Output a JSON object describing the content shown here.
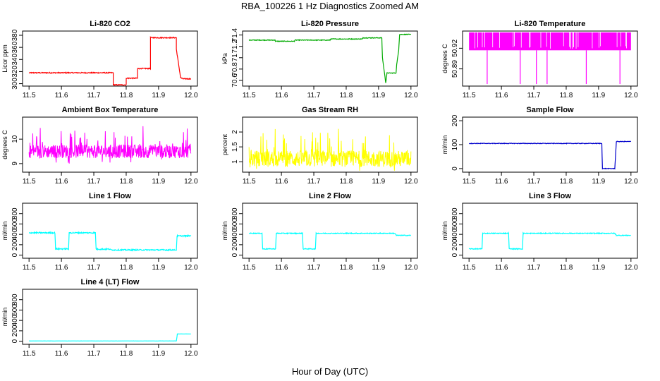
{
  "figure": {
    "title": "RBA_100226  1 Hz Diagnostics Zoomed AM",
    "xlabel": "Hour of Day (UTC)"
  },
  "chart_data": [
    {
      "type": "line",
      "title": "Li-820 CO2",
      "ylabel": "Licor ppm",
      "color": "#ff0000",
      "xlim": [
        11.5,
        12.0
      ],
      "ylim": [
        296,
        387
      ],
      "xticks": [
        "11.5",
        "11.6",
        "11.7",
        "11.8",
        "11.9",
        "12.0"
      ],
      "yticks": [
        300,
        320,
        340,
        360,
        380
      ],
      "noise": 0.8,
      "x": [
        11.5,
        11.76,
        11.76,
        11.8,
        11.8,
        11.835,
        11.835,
        11.875,
        11.875,
        11.955,
        11.955,
        11.968,
        11.975,
        12.0
      ],
      "y": [
        318,
        318,
        298,
        298,
        309,
        309,
        325,
        325,
        376,
        376,
        357,
        310,
        308,
        308
      ]
    },
    {
      "type": "line",
      "title": "Li-820 Pressure",
      "ylabel": "kPa",
      "color": "#00aa00",
      "xlim": [
        11.5,
        12.0
      ],
      "ylim": [
        70.5,
        71.47
      ],
      "xticks": [
        "11.5",
        "11.6",
        "11.7",
        "11.8",
        "11.9",
        "12.0"
      ],
      "yticks": [
        70.6,
        70.8,
        71.0,
        71.2,
        71.4
      ],
      "noise": 0.006,
      "x": [
        11.5,
        11.58,
        11.582,
        11.64,
        11.642,
        11.75,
        11.752,
        11.85,
        11.852,
        11.91,
        11.912,
        11.922,
        11.926,
        11.954,
        11.956,
        11.962,
        11.965,
        12.0
      ],
      "y": [
        71.31,
        71.31,
        71.29,
        71.29,
        71.31,
        71.31,
        71.33,
        71.33,
        71.35,
        71.35,
        71.0,
        70.56,
        70.73,
        70.73,
        70.88,
        71.13,
        71.41,
        71.41
      ]
    },
    {
      "type": "line",
      "title": "Li-820 Temperature",
      "ylabel": "degrees C",
      "color": "#ff00ff",
      "xlim": [
        11.5,
        12.0
      ],
      "ylim": [
        50.865,
        50.945
      ],
      "xticks": [
        "11.5",
        "11.6",
        "11.7",
        "11.8",
        "11.9",
        "12.0"
      ],
      "yticks": [
        50.89,
        50.92
      ],
      "ytick_labels_shown": [
        "50.89",
        "50.92"
      ],
      "band": [
        50.917,
        50.943
      ],
      "spikes": [
        11.556,
        11.658,
        11.708,
        11.741,
        11.862,
        11.966
      ],
      "spike_low": 50.868,
      "x": [],
      "y": []
    },
    {
      "type": "line",
      "title": "Ambient Box Temperature",
      "ylabel": "degrees C",
      "color": "#ff00ff",
      "xlim": [
        11.5,
        12.0
      ],
      "ylim": [
        8.65,
        10.9
      ],
      "xticks": [
        "11.5",
        "11.6",
        "11.7",
        "11.8",
        "11.9",
        "12.0"
      ],
      "yticks": [
        9.0,
        10.0
      ],
      "noise_series": {
        "mean": 9.5,
        "spread": 0.55
      },
      "x": [],
      "y": []
    },
    {
      "type": "line",
      "title": "Gas Stream RH",
      "ylabel": "percent",
      "color": "#ffff00",
      "xlim": [
        11.5,
        12.0
      ],
      "ylim": [
        0.65,
        2.5
      ],
      "xticks": [
        "11.5",
        "11.6",
        "11.7",
        "11.8",
        "11.9",
        "12.0"
      ],
      "yticks": [
        1.0,
        1.5,
        2.0
      ],
      "noise_series": {
        "mean": 1.1,
        "spread": 0.55
      },
      "x": [],
      "y": []
    },
    {
      "type": "line",
      "title": "Sample Flow",
      "ylabel": "ml/min",
      "color": "#0000cc",
      "xlim": [
        11.5,
        12.0
      ],
      "ylim": [
        -15,
        215
      ],
      "xticks": [
        "11.5",
        "11.6",
        "11.7",
        "11.8",
        "11.9",
        "12.0"
      ],
      "yticks": [
        0,
        100,
        200
      ],
      "noise": 1.2,
      "x": [
        11.5,
        11.91,
        11.912,
        11.95,
        11.955,
        11.958,
        12.0
      ],
      "y": [
        105,
        105,
        0,
        0,
        113,
        113,
        113
      ]
    },
    {
      "type": "line",
      "title": "Line 1 Flow",
      "ylabel": "ml/min",
      "color": "#00ffff",
      "xlim": [
        11.5,
        12.0
      ],
      "ylim": [
        -60,
        1000
      ],
      "xticks": [
        "11.5",
        "11.6",
        "11.7",
        "11.8",
        "11.9",
        "12.0"
      ],
      "yticks": [
        0,
        200,
        400,
        600,
        800
      ],
      "noise": 12,
      "x": [
        11.5,
        11.58,
        11.582,
        11.622,
        11.624,
        11.705,
        11.707,
        11.75,
        11.752,
        11.955,
        11.957,
        12.0
      ],
      "y": [
        430,
        430,
        120,
        120,
        430,
        430,
        115,
        115,
        100,
        100,
        370,
        370
      ]
    },
    {
      "type": "line",
      "title": "Line 2 Flow",
      "ylabel": "ml/min",
      "color": "#00ffff",
      "xlim": [
        11.5,
        12.0
      ],
      "ylim": [
        -60,
        1000
      ],
      "xticks": [
        "11.5",
        "11.6",
        "11.7",
        "11.8",
        "11.9",
        "12.0"
      ],
      "yticks": [
        0,
        200,
        400,
        600,
        800
      ],
      "noise": 8,
      "x": [
        11.5,
        11.54,
        11.542,
        11.582,
        11.584,
        11.665,
        11.667,
        11.705,
        11.707,
        11.95,
        11.955,
        12.0
      ],
      "y": [
        420,
        420,
        120,
        120,
        420,
        420,
        120,
        120,
        420,
        420,
        380,
        380
      ]
    },
    {
      "type": "line",
      "title": "Line 3 Flow",
      "ylabel": "ml/min",
      "color": "#00ffff",
      "xlim": [
        11.5,
        12.0
      ],
      "ylim": [
        -60,
        1000
      ],
      "xticks": [
        "11.5",
        "11.6",
        "11.7",
        "11.8",
        "11.9",
        "12.0"
      ],
      "yticks": [
        0,
        200,
        400,
        600,
        800
      ],
      "noise": 8,
      "x": [
        11.5,
        11.54,
        11.542,
        11.622,
        11.624,
        11.665,
        11.667,
        11.95,
        11.955,
        12.0
      ],
      "y": [
        120,
        120,
        420,
        420,
        120,
        120,
        420,
        420,
        380,
        380
      ]
    },
    {
      "type": "line",
      "title": "Line 4 (LT) Flow",
      "ylabel": "ml/min",
      "color": "#00ffff",
      "xlim": [
        11.5,
        12.0
      ],
      "ylim": [
        -60,
        1000
      ],
      "xticks": [
        "11.5",
        "11.6",
        "11.7",
        "11.8",
        "11.9",
        "12.0"
      ],
      "yticks": [
        0,
        200,
        400,
        600,
        800
      ],
      "noise": 1,
      "x": [
        11.5,
        11.955,
        11.958,
        12.0
      ],
      "y": [
        5,
        5,
        140,
        140
      ]
    }
  ]
}
